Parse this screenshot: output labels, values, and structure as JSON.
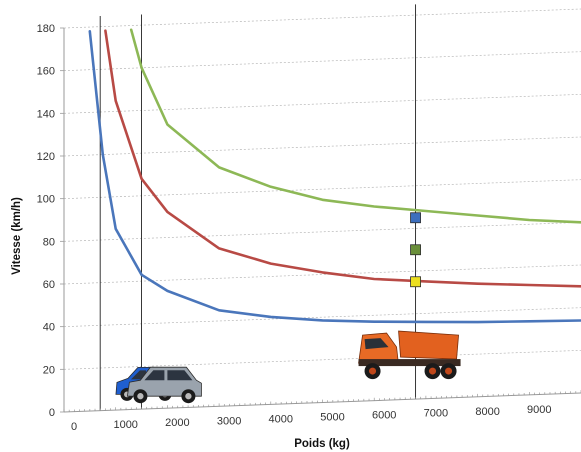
{
  "chart_data": {
    "type": "line",
    "xlabel": "Poids (kg)",
    "ylabel": "Vitesse (km/h)",
    "xlim": [
      0,
      10000
    ],
    "ylim": [
      0,
      180
    ],
    "x_ticks": [
      "0",
      "1000",
      "2000",
      "3000",
      "4000",
      "5000",
      "6000",
      "7000",
      "8000",
      "9000"
    ],
    "y_ticks": [
      "0",
      "20",
      "40",
      "60",
      "80",
      "100",
      "120",
      "140",
      "160",
      "180"
    ],
    "grid": true,
    "series": [
      {
        "color": "#4a76bb",
        "x": [
          500,
          750,
          1000,
          1500,
          2000,
          3000,
          4000,
          5000,
          6000,
          7000,
          8000,
          9000,
          10000
        ],
        "y": [
          178,
          120,
          85,
          63,
          55,
          45,
          41,
          38.5,
          37,
          36,
          35,
          34.5,
          34
        ]
      },
      {
        "color": "#b84a45",
        "x": [
          800,
          1000,
          1500,
          2000,
          3000,
          4000,
          5000,
          6000,
          7000,
          8000,
          9000,
          10000
        ],
        "y": [
          178,
          145,
          108,
          92,
          74,
          66,
          61,
          57,
          55,
          53,
          51.5,
          50
        ]
      },
      {
        "color": "#8db856",
        "x": [
          1300,
          1500,
          2000,
          3000,
          4000,
          5000,
          6000,
          7000,
          8000,
          9000,
          10000
        ],
        "y": [
          178,
          160,
          133,
          112,
          102,
          95,
          91,
          88,
          85,
          82,
          80
        ]
      }
    ],
    "vertical_lines_x": [
      700,
      1500,
      6800
    ],
    "markers": [
      {
        "x": 6800,
        "y": 85,
        "color": "#3d6fbe"
      },
      {
        "x": 6800,
        "y": 70,
        "color": "#6a8f3a"
      },
      {
        "x": 6800,
        "y": 55,
        "color": "#ecdf1e"
      }
    ],
    "images": [
      {
        "name": "blue-hatchback-car-icon",
        "x": 850
      },
      {
        "name": "grey-suv-car-icon",
        "x": 2000
      },
      {
        "name": "orange-dump-truck-icon",
        "x": 6800
      }
    ]
  }
}
